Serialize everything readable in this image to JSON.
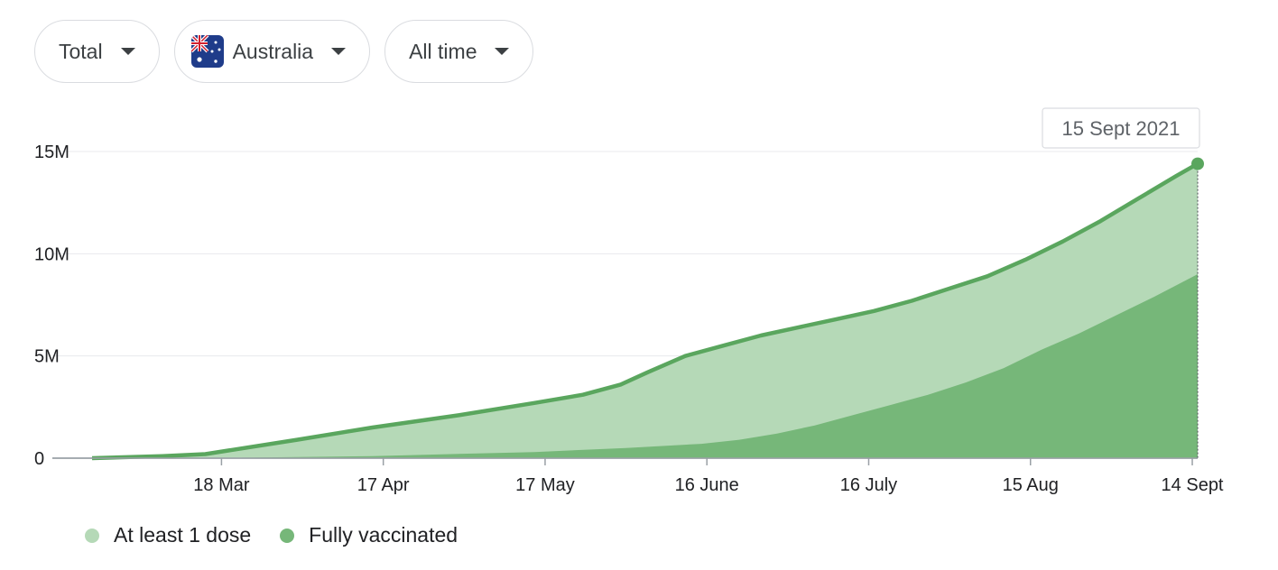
{
  "filters": {
    "metric": "Total",
    "region": "Australia",
    "range": "All time",
    "flag_icon": "australia-flag-icon"
  },
  "tooltip": {
    "label": "15 Sept 2021"
  },
  "colors": {
    "first_dose_fill": "#b5d9b7",
    "full_fill": "#76b779",
    "line": "#5aa65e",
    "grid": "#e8eaed",
    "axis": "#9aa0a6"
  },
  "chart_data": {
    "type": "area",
    "title": "",
    "xlabel": "",
    "ylabel": "",
    "x_range": [
      "2021-02-22",
      "2021-09-15"
    ],
    "ylim": [
      0,
      15000000
    ],
    "y_ticks": [
      {
        "value": 0,
        "label": "0"
      },
      {
        "value": 5000000,
        "label": "5M"
      },
      {
        "value": 10000000,
        "label": "10M"
      },
      {
        "value": 15000000,
        "label": "15M"
      }
    ],
    "x_ticks": [
      {
        "date": "2021-03-18",
        "label": "18 Mar"
      },
      {
        "date": "2021-04-17",
        "label": "17 Apr"
      },
      {
        "date": "2021-05-17",
        "label": "17 May"
      },
      {
        "date": "2021-06-16",
        "label": "16 June"
      },
      {
        "date": "2021-07-16",
        "label": "16 July"
      },
      {
        "date": "2021-08-15",
        "label": "15 Aug"
      },
      {
        "date": "2021-09-14",
        "label": "14 Sept"
      }
    ],
    "legend_position": "bottom-left",
    "grid": true,
    "series": [
      {
        "name": "At least 1 dose",
        "points": [
          [
            "2021-02-22",
            0
          ],
          [
            "2021-03-07",
            100000
          ],
          [
            "2021-03-15",
            200000
          ],
          [
            "2021-04-01",
            900000
          ],
          [
            "2021-04-15",
            1500000
          ],
          [
            "2021-05-01",
            2100000
          ],
          [
            "2021-05-15",
            2700000
          ],
          [
            "2021-05-24",
            3100000
          ],
          [
            "2021-05-31",
            3600000
          ],
          [
            "2021-06-05",
            4200000
          ],
          [
            "2021-06-12",
            5000000
          ],
          [
            "2021-06-19",
            5500000
          ],
          [
            "2021-06-26",
            6000000
          ],
          [
            "2021-07-03",
            6400000
          ],
          [
            "2021-07-10",
            6800000
          ],
          [
            "2021-07-17",
            7200000
          ],
          [
            "2021-07-24",
            7700000
          ],
          [
            "2021-07-31",
            8300000
          ],
          [
            "2021-08-07",
            8900000
          ],
          [
            "2021-08-14",
            9700000
          ],
          [
            "2021-08-21",
            10600000
          ],
          [
            "2021-08-28",
            11600000
          ],
          [
            "2021-09-04",
            12700000
          ],
          [
            "2021-09-11",
            13800000
          ],
          [
            "2021-09-15",
            14400000
          ]
        ]
      },
      {
        "name": "Fully vaccinated",
        "points": [
          [
            "2021-02-22",
            0
          ],
          [
            "2021-03-15",
            0
          ],
          [
            "2021-04-15",
            100000
          ],
          [
            "2021-05-15",
            300000
          ],
          [
            "2021-06-01",
            500000
          ],
          [
            "2021-06-15",
            700000
          ],
          [
            "2021-06-22",
            900000
          ],
          [
            "2021-06-29",
            1200000
          ],
          [
            "2021-07-06",
            1600000
          ],
          [
            "2021-07-13",
            2100000
          ],
          [
            "2021-07-20",
            2600000
          ],
          [
            "2021-07-27",
            3100000
          ],
          [
            "2021-08-03",
            3700000
          ],
          [
            "2021-08-10",
            4400000
          ],
          [
            "2021-08-17",
            5300000
          ],
          [
            "2021-08-24",
            6100000
          ],
          [
            "2021-08-31",
            7000000
          ],
          [
            "2021-09-07",
            7900000
          ],
          [
            "2021-09-15",
            9000000
          ]
        ]
      }
    ]
  }
}
